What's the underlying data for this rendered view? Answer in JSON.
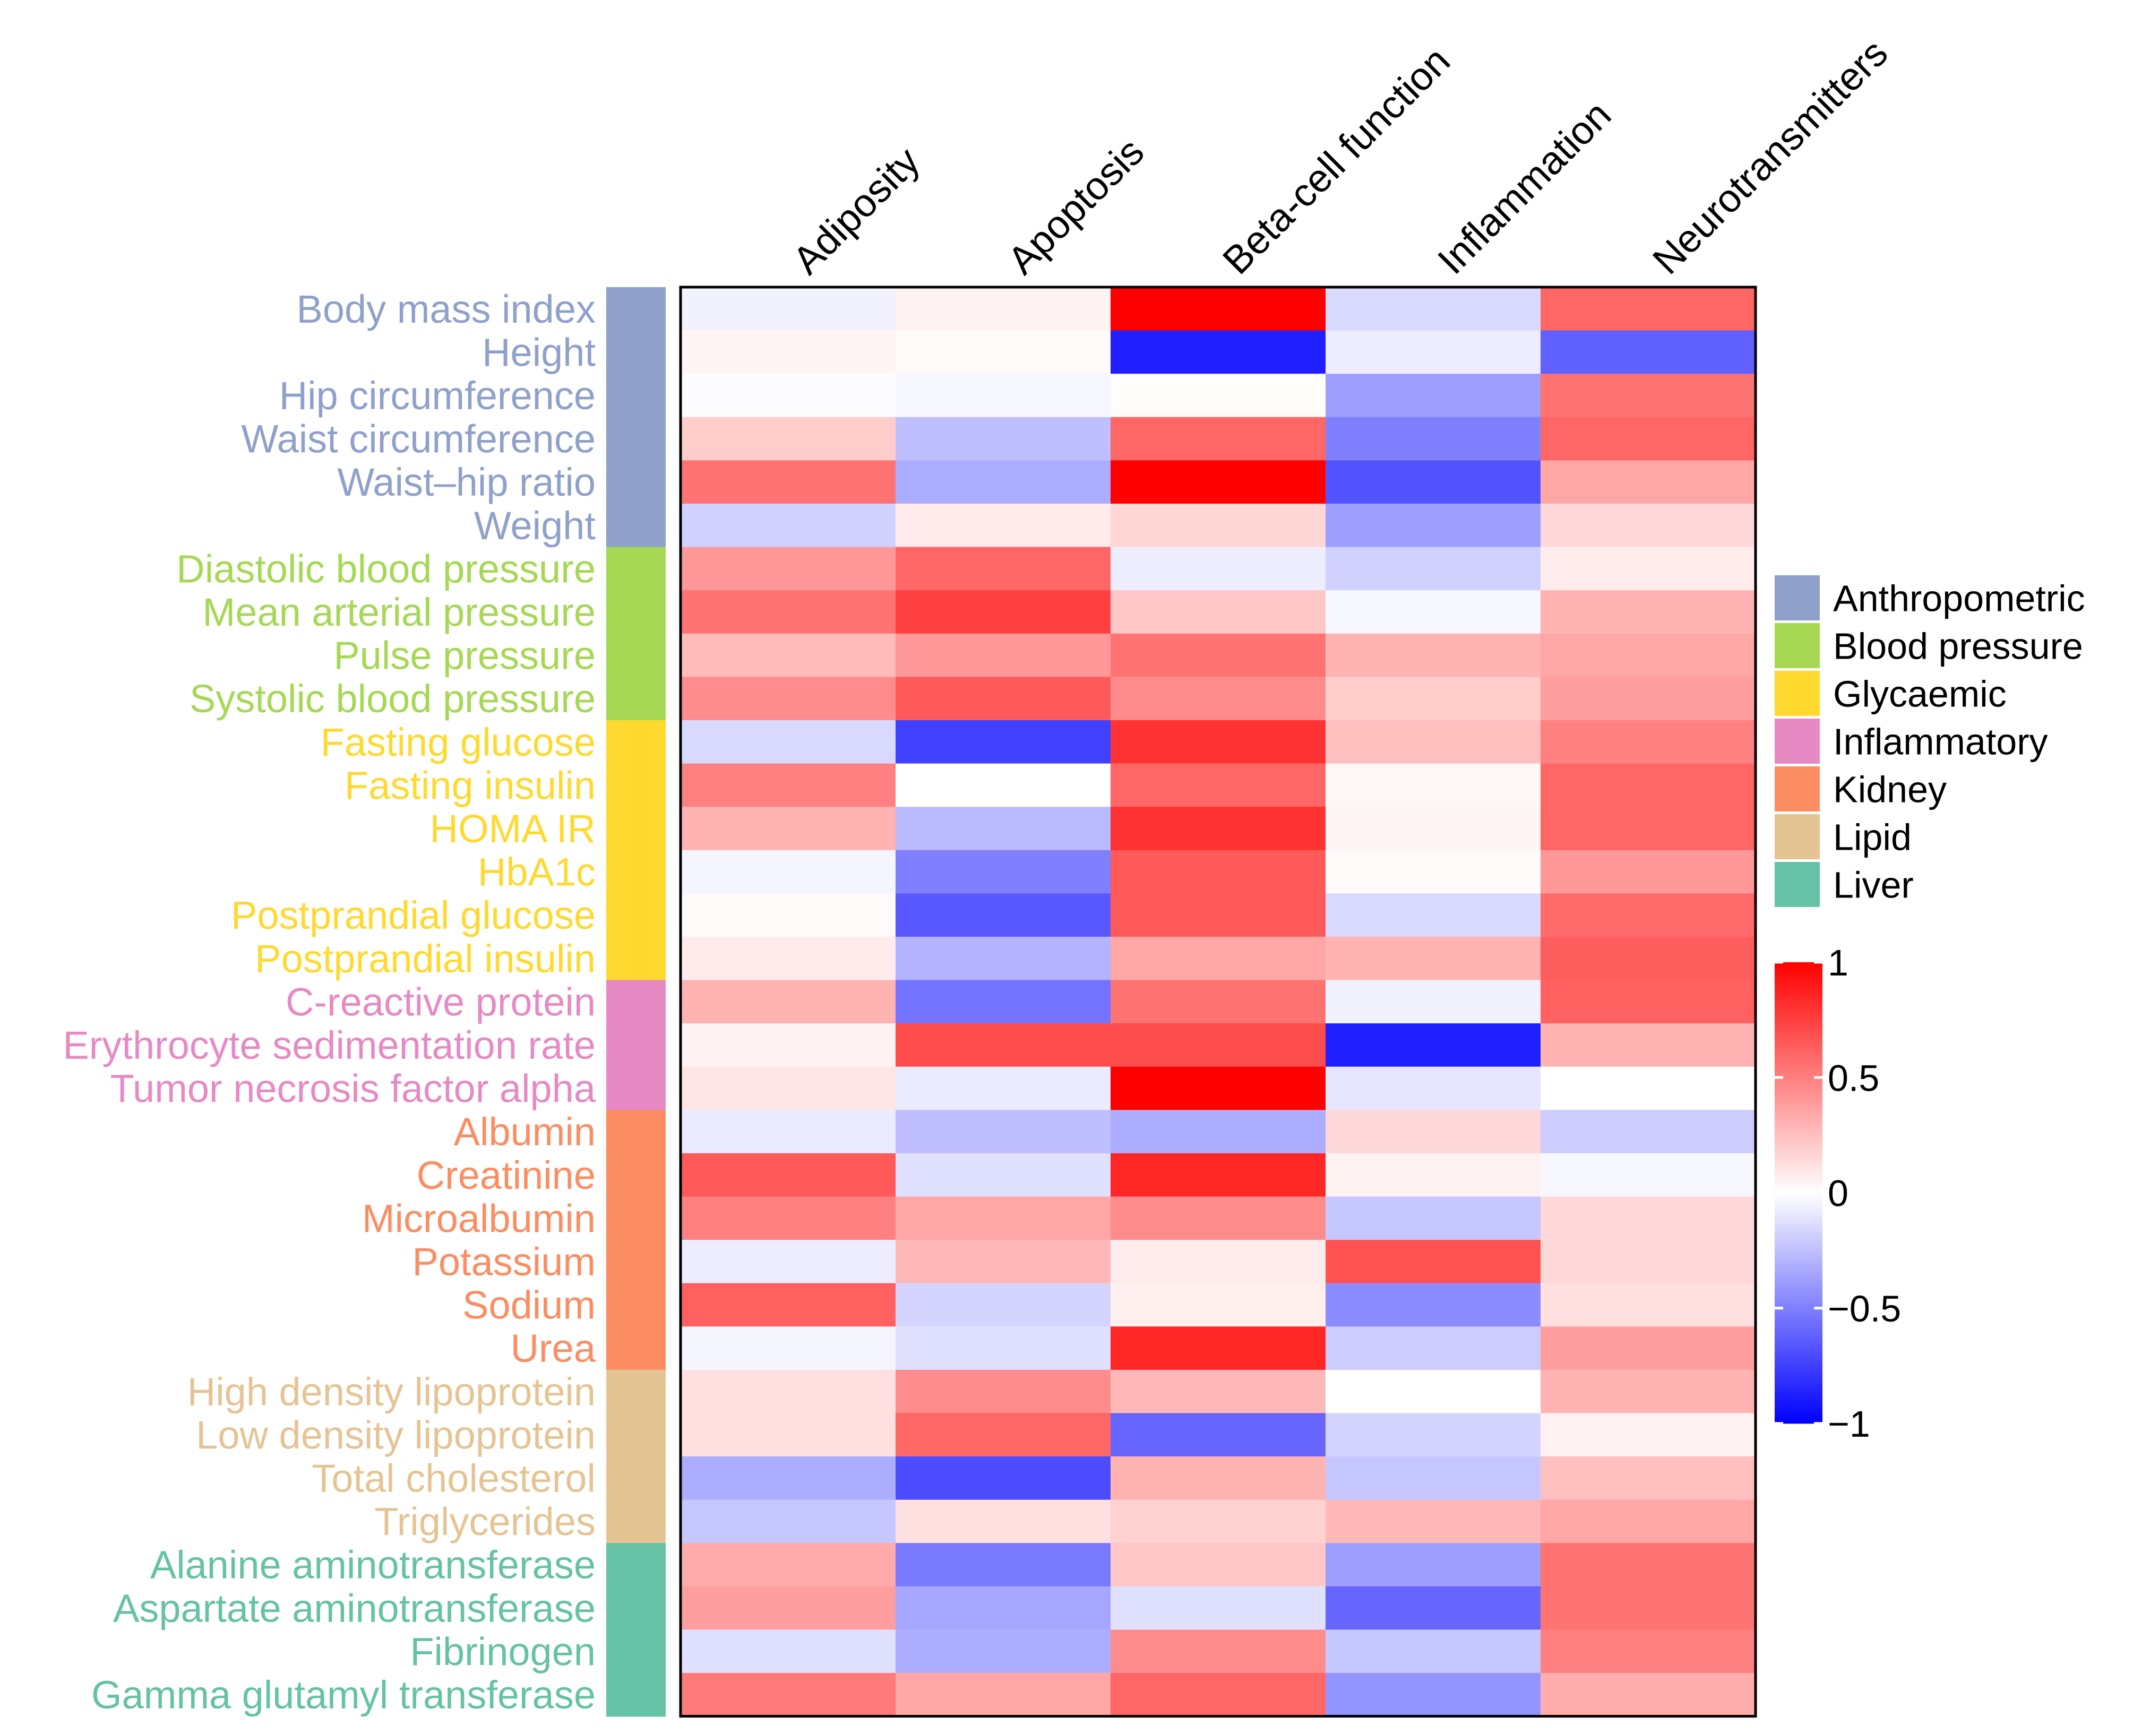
{
  "chart_data": {
    "type": "heatmap",
    "columns": [
      "Adiposity",
      "Apoptosis",
      "Beta-cell function",
      "Inflammation",
      "Neurotransmitters"
    ],
    "rows": [
      {
        "label": "Body mass index",
        "group": "Anthropometric",
        "values": [
          -0.05,
          0.05,
          1.0,
          -0.15,
          0.6
        ]
      },
      {
        "label": "Height",
        "group": "Anthropometric",
        "values": [
          0.04,
          0.02,
          -0.88,
          -0.07,
          -0.62
        ]
      },
      {
        "label": "Hip circumference",
        "group": "Anthropometric",
        "values": [
          -0.01,
          -0.03,
          0.01,
          -0.38,
          0.55
        ]
      },
      {
        "label": "Waist circumference",
        "group": "Anthropometric",
        "values": [
          0.2,
          -0.25,
          0.6,
          -0.5,
          0.6
        ]
      },
      {
        "label": "Waist–hip ratio",
        "group": "Anthropometric",
        "values": [
          0.55,
          -0.32,
          1.0,
          -0.68,
          0.35
        ]
      },
      {
        "label": "Weight",
        "group": "Anthropometric",
        "values": [
          -0.18,
          0.08,
          0.16,
          -0.38,
          0.15
        ]
      },
      {
        "label": "Diastolic blood pressure",
        "group": "Blood pressure",
        "values": [
          0.4,
          0.6,
          -0.07,
          -0.18,
          0.07
        ]
      },
      {
        "label": "Mean arterial pressure",
        "group": "Blood pressure",
        "values": [
          0.55,
          0.75,
          0.22,
          -0.03,
          0.3
        ]
      },
      {
        "label": "Pulse pressure",
        "group": "Blood pressure",
        "values": [
          0.27,
          0.4,
          0.55,
          0.3,
          0.35
        ]
      },
      {
        "label": "Systolic blood pressure",
        "group": "Blood pressure",
        "values": [
          0.45,
          0.65,
          0.45,
          0.2,
          0.38
        ]
      },
      {
        "label": "Fasting glucose",
        "group": "Glycaemic",
        "values": [
          -0.15,
          -0.75,
          0.8,
          0.25,
          0.5
        ]
      },
      {
        "label": "Fasting insulin",
        "group": "Glycaemic",
        "values": [
          0.5,
          0.0,
          0.6,
          0.03,
          0.6
        ]
      },
      {
        "label": "HOMA IR",
        "group": "Glycaemic",
        "values": [
          0.3,
          -0.27,
          0.8,
          0.04,
          0.6
        ]
      },
      {
        "label": "HbA1c",
        "group": "Glycaemic",
        "values": [
          -0.04,
          -0.5,
          0.65,
          0.02,
          0.4
        ]
      },
      {
        "label": "Postprandial glucose",
        "group": "Glycaemic",
        "values": [
          0.02,
          -0.65,
          0.65,
          -0.15,
          0.58
        ]
      },
      {
        "label": "Postprandial insulin",
        "group": "Glycaemic",
        "values": [
          0.08,
          -0.3,
          0.35,
          0.3,
          0.63
        ]
      },
      {
        "label": "C-reactive protein",
        "group": "Inflammatory",
        "values": [
          0.3,
          -0.55,
          0.55,
          -0.05,
          0.62
        ]
      },
      {
        "label": "Erythrocyte sedimentation rate",
        "group": "Inflammatory",
        "values": [
          0.05,
          0.7,
          0.7,
          -0.88,
          0.3
        ]
      },
      {
        "label": "Tumor necrosis factor alpha",
        "group": "Inflammatory",
        "values": [
          0.1,
          -0.08,
          1.0,
          -0.1,
          0.0
        ]
      },
      {
        "label": "Albumin",
        "group": "Kidney",
        "values": [
          -0.08,
          -0.25,
          -0.32,
          0.15,
          -0.2
        ]
      },
      {
        "label": "Creatinine",
        "group": "Kidney",
        "values": [
          0.65,
          -0.12,
          0.85,
          0.05,
          -0.03
        ]
      },
      {
        "label": "Microalbumin",
        "group": "Kidney",
        "values": [
          0.5,
          0.35,
          0.45,
          -0.22,
          0.15
        ]
      },
      {
        "label": "Potassium",
        "group": "Kidney",
        "values": [
          -0.07,
          0.28,
          0.07,
          0.68,
          0.15
        ]
      },
      {
        "label": "Sodium",
        "group": "Kidney",
        "values": [
          0.62,
          -0.17,
          0.06,
          -0.45,
          0.12
        ]
      },
      {
        "label": "Urea",
        "group": "Kidney",
        "values": [
          -0.04,
          -0.12,
          0.85,
          -0.2,
          0.38
        ]
      },
      {
        "label": "High density lipoprotein",
        "group": "Lipid",
        "values": [
          0.12,
          0.45,
          0.28,
          0.0,
          0.3
        ]
      },
      {
        "label": "Low density lipoprotein",
        "group": "Lipid",
        "values": [
          0.12,
          0.6,
          -0.6,
          -0.17,
          0.05
        ]
      },
      {
        "label": "Total cholesterol",
        "group": "Lipid",
        "values": [
          -0.32,
          -0.7,
          0.3,
          -0.22,
          0.25
        ]
      },
      {
        "label": "Triglycerides",
        "group": "Lipid",
        "values": [
          -0.22,
          0.12,
          0.18,
          0.28,
          0.35
        ]
      },
      {
        "label": "Alanine aminotransferase",
        "group": "Liver",
        "values": [
          0.33,
          -0.52,
          0.22,
          -0.38,
          0.55
        ]
      },
      {
        "label": "Aspartate aminotransferase",
        "group": "Liver",
        "values": [
          0.38,
          -0.35,
          -0.12,
          -0.6,
          0.55
        ]
      },
      {
        "label": "Fibrinogen",
        "group": "Liver",
        "values": [
          -0.12,
          -0.32,
          0.45,
          -0.22,
          0.5
        ]
      },
      {
        "label": "Gamma glutamyl transferase",
        "group": "Liver",
        "values": [
          0.52,
          0.35,
          0.6,
          -0.42,
          0.32
        ]
      }
    ],
    "groups": [
      {
        "name": "Anthropometric",
        "color": "#8FA0CB"
      },
      {
        "name": "Blood pressure",
        "color": "#A6D854"
      },
      {
        "name": "Glycaemic",
        "color": "#FFD92F"
      },
      {
        "name": "Inflammatory",
        "color": "#E78AC3"
      },
      {
        "name": "Kidney",
        "color": "#FC8D62"
      },
      {
        "name": "Lipid",
        "color": "#E5C494"
      },
      {
        "name": "Liver",
        "color": "#66C2A5"
      }
    ],
    "color_scale": {
      "min": -1,
      "max": 1,
      "low_color": "#0000FF",
      "mid_color": "#FFFFFF",
      "high_color": "#FF0000",
      "ticks": [
        {
          "value": 1,
          "label": "1"
        },
        {
          "value": 0.5,
          "label": "0.5"
        },
        {
          "value": 0,
          "label": "0"
        },
        {
          "value": -0.5,
          "label": "−0.5"
        },
        {
          "value": -1,
          "label": "−1"
        }
      ]
    }
  }
}
